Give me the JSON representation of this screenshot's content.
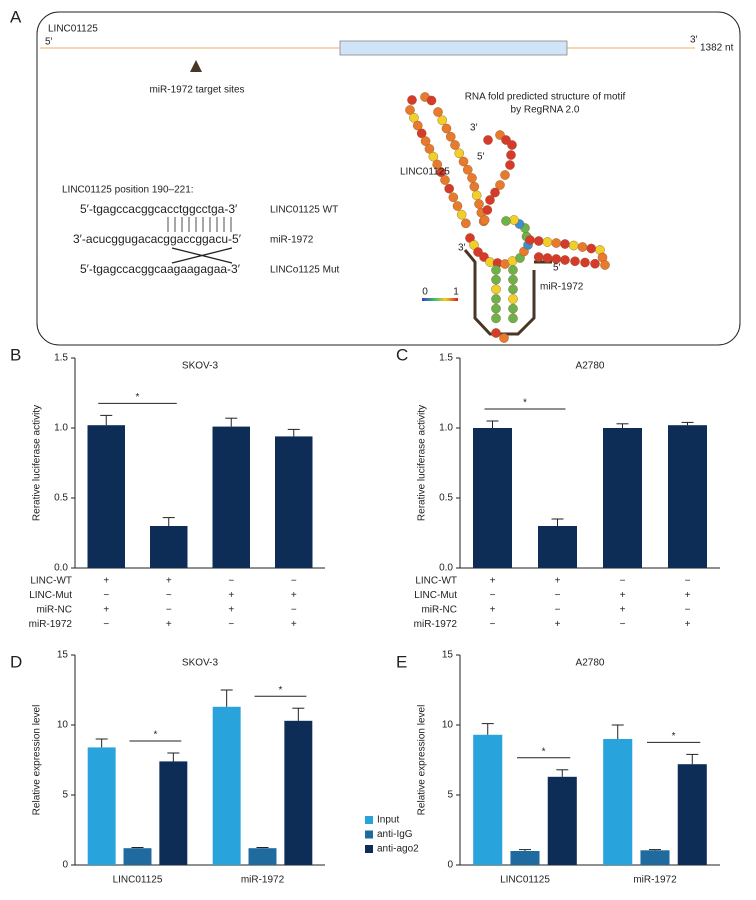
{
  "panel_a": {
    "label": "A",
    "transcript": "LINC01125",
    "five_end": "5′",
    "three_end": "3′",
    "length": "1382 nt",
    "target_label": "miR-1972 target sites",
    "position": "LINC01125 position 190–221:",
    "sequences": [
      {
        "seq": "5′-tgagccacggcacctggcctga-3′",
        "name": "LINC01125 WT"
      },
      {
        "seq": "3′-acucggugacacggaccggacu-5′",
        "name": "miR-1972"
      },
      {
        "seq": "5′-tgagccacggcaagaagagaa-3′",
        "name": "LINCo1125 Mut"
      }
    ],
    "fold_title": "RNA fold predicted structure of motif",
    "fold_subtitle": "by RegRNA 2.0",
    "fold_labels": {
      "lnc_three": "3′",
      "lnc_five": "5′",
      "lnc_name": "LINC01125",
      "mir_three": "3′",
      "mir_five": "5′",
      "mir_name": "miR-1972"
    },
    "scale": [
      "0",
      "1"
    ]
  },
  "chart_data": [
    {
      "panel": "B",
      "type": "bar",
      "title": "SKOV-3",
      "ylabel": "Rerative luciferase activity",
      "categories": [
        null,
        null,
        null,
        null
      ],
      "values": [
        1.02,
        0.3,
        1.01,
        0.94
      ],
      "errors": [
        0.07,
        0.06,
        0.06,
        0.05
      ],
      "color": "#0d2d57",
      "ylim": [
        0,
        1.5
      ],
      "yticks": [
        {
          "value": 0,
          "label": "0.0"
        },
        0.5,
        {
          "value": 1,
          "label": "1.0"
        },
        1.5
      ],
      "conditions": [
        {
          "name": "LINC-WT",
          "signs": [
            "+",
            "+",
            "−",
            "−"
          ]
        },
        {
          "name": "LINC-Mut",
          "signs": [
            "−",
            "−",
            "+",
            "+"
          ]
        },
        {
          "name": "miR-NC",
          "signs": [
            "+",
            "−",
            "+",
            "−"
          ]
        },
        {
          "name": "miR-1972",
          "signs": [
            "−",
            "+",
            "−",
            "+"
          ]
        }
      ],
      "significance": [
        {
          "text": "*",
          "between": [
            0,
            1
          ]
        }
      ]
    },
    {
      "panel": "C",
      "type": "bar",
      "title": "A2780",
      "ylabel": "Rerative luciferase activity",
      "categories": [
        null,
        null,
        null,
        null
      ],
      "values": [
        1.0,
        0.3,
        1.0,
        1.02
      ],
      "errors": [
        0.05,
        0.05,
        0.03,
        0.02
      ],
      "color": "#0d2d57",
      "ylim": [
        0,
        1.5
      ],
      "yticks": [
        {
          "value": 0,
          "label": "0.0"
        },
        0.5,
        {
          "value": 1,
          "label": "1.0"
        },
        1.5
      ],
      "conditions": [
        {
          "name": "LINC-WT",
          "signs": [
            "+",
            "+",
            "−",
            "−"
          ]
        },
        {
          "name": "LINC-Mut",
          "signs": [
            "−",
            "−",
            "+",
            "+"
          ]
        },
        {
          "name": "miR-NC",
          "signs": [
            "+",
            "−",
            "+",
            "−"
          ]
        },
        {
          "name": "miR-1972",
          "signs": [
            "−",
            "+",
            "−",
            "+"
          ]
        }
      ],
      "significance": [
        {
          "text": "*",
          "between": [
            0,
            1
          ]
        }
      ]
    },
    {
      "panel": "D",
      "type": "grouped_bar",
      "title": "SKOV-3",
      "ylabel": "Relative expression level",
      "categories": [
        "LINC01125",
        "miR-1972"
      ],
      "ylim": [
        0,
        15
      ],
      "yticks": [
        0,
        5,
        10,
        15
      ],
      "legend": true,
      "series": [
        {
          "name": "Input",
          "color": "#29a3dc",
          "values": [
            8.4,
            11.3
          ],
          "errors": [
            0.6,
            1.2
          ]
        },
        {
          "name": "anti-IgG",
          "color": "#1f6a9e",
          "values": [
            1.2,
            1.2
          ],
          "errors": [
            0.05,
            0.05
          ]
        },
        {
          "name": "anti-ago2",
          "color": "#0d2d57",
          "values": [
            7.4,
            10.3
          ],
          "errors": [
            0.6,
            0.9
          ]
        }
      ],
      "significance": [
        {
          "text": "*",
          "category": 0,
          "between": [
            1,
            2
          ]
        },
        {
          "text": "*",
          "category": 1,
          "between": [
            1,
            2
          ]
        }
      ]
    },
    {
      "panel": "E",
      "type": "grouped_bar",
      "title": "A2780",
      "ylabel": "Relative expression level",
      "categories": [
        "LINC01125",
        "miR-1972"
      ],
      "ylim": [
        0,
        15
      ],
      "yticks": [
        0,
        5,
        10,
        15
      ],
      "legend": false,
      "series": [
        {
          "color": "#29a3dc",
          "values": [
            9.3,
            9.0
          ],
          "errors": [
            0.8,
            1.0
          ]
        },
        {
          "color": "#1f6a9e",
          "values": [
            1.0,
            1.05
          ],
          "errors": [
            0.1,
            0.05
          ]
        },
        {
          "color": "#0d2d57",
          "values": [
            6.3,
            7.2
          ],
          "errors": [
            0.5,
            0.7
          ]
        }
      ],
      "significance": [
        {
          "text": "*",
          "category": 0,
          "between": [
            1,
            2
          ]
        },
        {
          "text": "*",
          "category": 1,
          "between": [
            1,
            2
          ]
        }
      ]
    }
  ]
}
